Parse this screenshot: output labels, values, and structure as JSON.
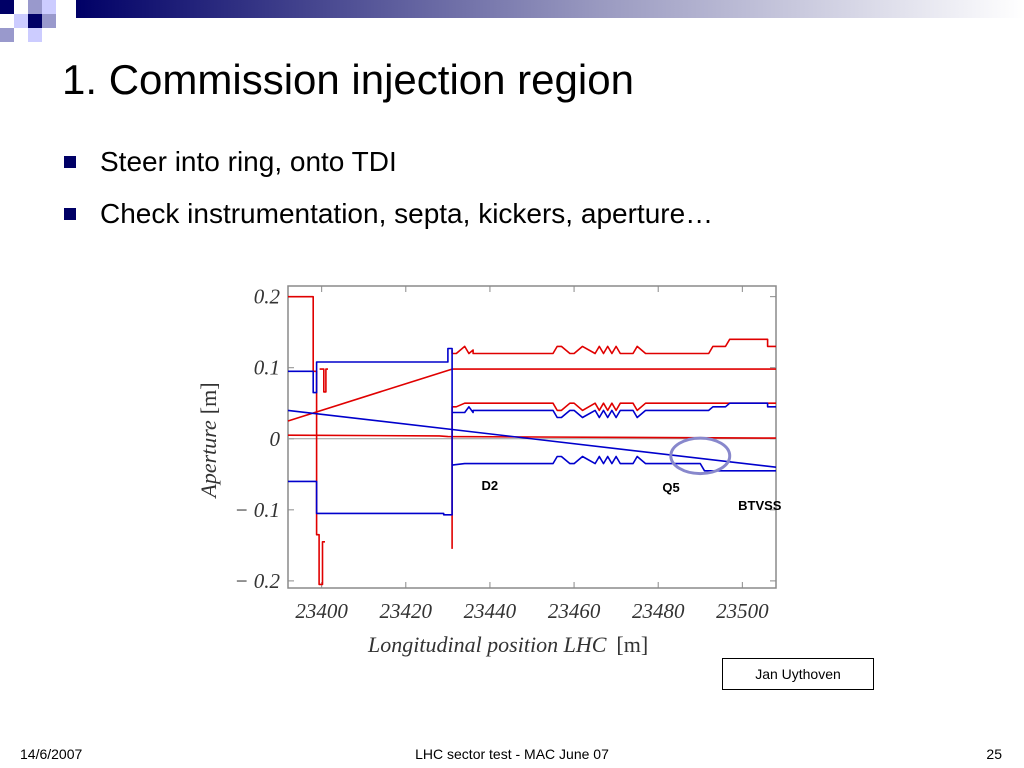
{
  "slide": {
    "title": "1. Commission injection region",
    "bullets": [
      "Steer into ring, onto TDI",
      "Check instrumentation, septa, kickers, aperture…"
    ],
    "credit": "Jan Uythoven",
    "footer": {
      "date": "14/6/2007",
      "center": "LHC sector test - MAC June 07",
      "page": "25"
    },
    "colors": {
      "accent": "#000066",
      "red": "#e00000",
      "blue": "#0000cc",
      "highlight": "#8888cc"
    }
  },
  "chart_data": {
    "type": "line",
    "xlabel_main": "Longitudinal position LHC",
    "xlabel_unit": "[m]",
    "ylabel_main": "Aperture",
    "ylabel_unit": "[m]",
    "xlim": [
      23392,
      23508
    ],
    "ylim": [
      -0.21,
      0.215
    ],
    "xticks": [
      23400,
      23420,
      23440,
      23460,
      23480,
      23500
    ],
    "yticks": [
      0.2,
      0.1,
      0,
      -0.1,
      -0.2
    ],
    "ytick_labels": [
      "0.2",
      "0.1",
      "0",
      "− 0.1",
      "− 0.2"
    ],
    "annotations": [
      {
        "text": "D2",
        "x": 23438,
        "y": -0.072
      },
      {
        "text": "Q5",
        "x": 23481,
        "y": -0.075
      },
      {
        "text": "BTVSS",
        "x": 23499,
        "y": -0.1
      }
    ],
    "highlight": {
      "x": 23490,
      "y": -0.024,
      "rx": 7,
      "ry": 0.025
    },
    "series": [
      {
        "color": "red",
        "x": [
          23392,
          23398,
          23398,
          23398.8,
          23398.8,
          23398.8,
          23398.8,
          23399.4,
          23399.4,
          23400.2,
          23400.2,
          23400.8
        ],
        "y": [
          0.2,
          0.2,
          0.095,
          0.095,
          0.065,
          -0.135,
          -0.135,
          -0.135,
          -0.205,
          -0.205,
          -0.145,
          -0.145
        ]
      },
      {
        "color": "red",
        "x": [
          23399.5,
          23400.5,
          23400.5,
          23401,
          23401,
          23401.5
        ],
        "y": [
          0.098,
          0.098,
          0.066,
          0.066,
          0.098,
          0.098
        ]
      },
      {
        "color": "red",
        "x": [
          23392,
          23428,
          23430,
          23508
        ],
        "y": [
          0.005,
          0.004,
          0.003,
          0.001
        ]
      },
      {
        "color": "red",
        "x": [
          23392,
          23431,
          23451,
          23508
        ],
        "y": [
          0.025,
          0.098,
          0.098,
          0.098
        ]
      },
      {
        "color": "red",
        "x": [
          23431,
          23431,
          23432,
          23434,
          23435,
          23436,
          23436,
          23438,
          23450,
          23455,
          23456,
          23457,
          23459,
          23460,
          23462,
          23465,
          23466,
          23467,
          23468,
          23469,
          23470,
          23471,
          23474,
          23475,
          23477,
          23492,
          23493,
          23496,
          23497,
          23506,
          23506,
          23508
        ],
        "y": [
          0.125,
          0.12,
          0.12,
          0.13,
          0.12,
          0.125,
          0.12,
          0.12,
          0.12,
          0.12,
          0.13,
          0.13,
          0.12,
          0.12,
          0.13,
          0.12,
          0.13,
          0.12,
          0.13,
          0.12,
          0.13,
          0.12,
          0.12,
          0.13,
          0.12,
          0.12,
          0.13,
          0.13,
          0.14,
          0.14,
          0.13,
          0.13
        ]
      },
      {
        "color": "red",
        "x": [
          23431,
          23431,
          23432,
          23434,
          23450,
          23455,
          23456,
          23457,
          23459,
          23460,
          23462,
          23465,
          23466,
          23467,
          23468,
          23469,
          23470,
          23471,
          23474,
          23475,
          23477,
          23492,
          23493,
          23508
        ],
        "y": [
          -0.155,
          0.045,
          0.045,
          0.05,
          0.05,
          0.05,
          0.04,
          0.04,
          0.05,
          0.05,
          0.04,
          0.05,
          0.04,
          0.05,
          0.04,
          0.05,
          0.04,
          0.05,
          0.05,
          0.04,
          0.05,
          0.05,
          0.05,
          0.05
        ]
      },
      {
        "color": "blue",
        "x": [
          23392,
          23398,
          23398,
          23398.8,
          23398.8,
          23430,
          23430,
          23431,
          23431,
          23431,
          23431,
          23429,
          23429,
          23398.8,
          23398.8,
          23398,
          23398,
          23392
        ],
        "y": [
          0.095,
          0.095,
          0.065,
          0.065,
          0.108,
          0.108,
          0.127,
          0.127,
          0,
          -0.107,
          -0.107,
          -0.107,
          -0.105,
          -0.105,
          -0.06,
          -0.06,
          -0.06,
          -0.06
        ]
      },
      {
        "color": "blue",
        "x": [
          23392,
          23508
        ],
        "y": [
          0.04,
          -0.04
        ]
      },
      {
        "color": "blue",
        "x": [
          23431,
          23434,
          23435,
          23436,
          23436,
          23438,
          23450,
          23455,
          23456,
          23457,
          23459,
          23460,
          23462,
          23465,
          23466,
          23467,
          23468,
          23469,
          23470,
          23471,
          23474,
          23475,
          23477,
          23492,
          23493,
          23496,
          23497,
          23506,
          23506,
          23508
        ],
        "y": [
          0.037,
          0.037,
          0.045,
          0.037,
          0.04,
          0.04,
          0.04,
          0.04,
          0.03,
          0.03,
          0.04,
          0.04,
          0.03,
          0.04,
          0.03,
          0.04,
          0.03,
          0.04,
          0.03,
          0.04,
          0.04,
          0.03,
          0.04,
          0.04,
          0.045,
          0.045,
          0.05,
          0.05,
          0.045,
          0.045
        ]
      },
      {
        "color": "blue",
        "x": [
          23431,
          23434,
          23450,
          23455,
          23456,
          23457,
          23459,
          23460,
          23462,
          23465,
          23466,
          23467,
          23468,
          23469,
          23470,
          23471,
          23474,
          23475,
          23477,
          23487,
          23490,
          23491,
          23508
        ],
        "y": [
          -0.037,
          -0.035,
          -0.035,
          -0.035,
          -0.025,
          -0.025,
          -0.035,
          -0.035,
          -0.025,
          -0.035,
          -0.025,
          -0.035,
          -0.025,
          -0.035,
          -0.025,
          -0.035,
          -0.035,
          -0.025,
          -0.035,
          -0.035,
          -0.035,
          -0.045,
          -0.045
        ]
      }
    ]
  }
}
